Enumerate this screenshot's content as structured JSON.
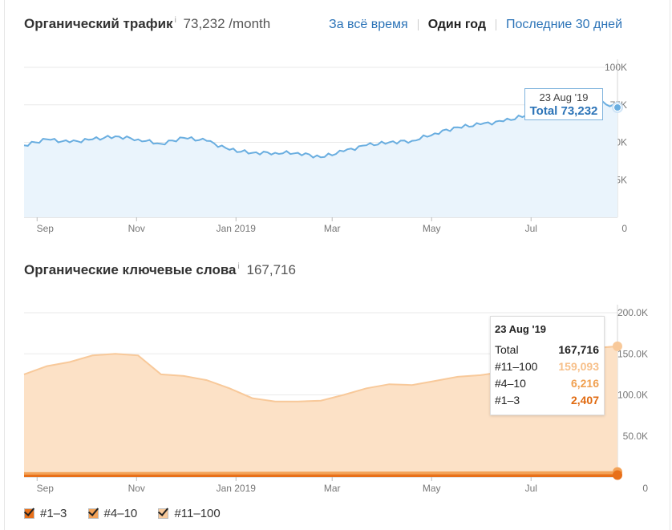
{
  "traffic": {
    "title": "Органический трафик",
    "info": "i",
    "value": "73,232",
    "unit": "/month",
    "period": {
      "all_time": "За всё время",
      "one_year": "Один год",
      "last_30": "Последние 30 дней"
    },
    "tooltip": {
      "date": "23 Aug '19",
      "total": "Total 73,232"
    }
  },
  "keywords": {
    "title": "Органические ключевые слова",
    "info": "i",
    "value": "167,716",
    "tooltip": {
      "date": "23 Aug '19",
      "rows": [
        {
          "label": "Total",
          "value": "167,716",
          "color": "#222222"
        },
        {
          "label": "#11–100",
          "value": "159,093",
          "color": "#f7c08a"
        },
        {
          "label": "#4–10",
          "value": "6,216",
          "color": "#f0a050"
        },
        {
          "label": "#1–3",
          "value": "2,407",
          "color": "#e06a10"
        }
      ]
    },
    "legend": [
      {
        "label": "#1–3",
        "color": "#e8701a"
      },
      {
        "label": "#4–10",
        "color": "#f3a257"
      },
      {
        "label": "#11–100",
        "color": "#f8c99a"
      }
    ]
  },
  "chart_data": [
    {
      "type": "area",
      "series": [
        {
          "name": "",
          "color": "#6aaee0",
          "x": [
            "2018-08-24",
            "2018-09-07",
            "2018-09-21",
            "2018-10-05",
            "2018-10-19",
            "2018-11-02",
            "2018-11-16",
            "2018-11-30",
            "2018-12-14",
            "2018-12-28",
            "2019-01-11",
            "2019-01-25",
            "2019-02-08",
            "2019-02-22",
            "2019-03-08",
            "2019-03-22",
            "2019-04-05",
            "2019-04-19",
            "2019-05-03",
            "2019-05-17",
            "2019-05-31",
            "2019-06-14",
            "2019-06-28",
            "2019-07-12",
            "2019-07-26",
            "2019-08-09",
            "2019-08-23"
          ],
          "values": [
            48000,
            52000,
            50000,
            52000,
            54000,
            52000,
            49000,
            53000,
            51000,
            45000,
            43000,
            43000,
            43000,
            40000,
            44000,
            48000,
            50000,
            51000,
            56000,
            60000,
            62000,
            64000,
            68000,
            72000,
            77000,
            78000,
            73232
          ]
        }
      ],
      "x_ticks": [
        "Sep",
        "Nov",
        "Jan 2019",
        "Mar",
        "May",
        "Jul"
      ],
      "y_ticks": [
        "0",
        "25K",
        "50K",
        "75K",
        "100K"
      ],
      "ylim": [
        0,
        100000
      ],
      "grid": true
    },
    {
      "type": "area",
      "series": [
        {
          "name": "#11–100",
          "color": "#f8c99a",
          "x": [
            "2018-08-24",
            "2018-09-07",
            "2018-09-21",
            "2018-10-05",
            "2018-10-19",
            "2018-11-02",
            "2018-11-16",
            "2018-11-30",
            "2018-12-14",
            "2018-12-28",
            "2019-01-11",
            "2019-01-25",
            "2019-02-08",
            "2019-02-22",
            "2019-03-08",
            "2019-03-22",
            "2019-04-05",
            "2019-04-19",
            "2019-05-03",
            "2019-05-17",
            "2019-05-31",
            "2019-06-14",
            "2019-06-28",
            "2019-07-12",
            "2019-07-26",
            "2019-08-09",
            "2019-08-23"
          ],
          "values": [
            125000,
            135000,
            140000,
            148000,
            150000,
            148000,
            125000,
            123000,
            118000,
            108000,
            96000,
            92000,
            92000,
            93000,
            100000,
            108000,
            113000,
            112000,
            117000,
            122000,
            124000,
            128000,
            138000,
            148000,
            155000,
            157000,
            159093
          ]
        },
        {
          "name": "#4–10",
          "color": "#f3a257",
          "x": [
            "2018-08-24",
            "2019-08-23"
          ],
          "values": [
            5000,
            6216
          ]
        },
        {
          "name": "#1–3",
          "color": "#e8701a",
          "x": [
            "2018-08-24",
            "2019-08-23"
          ],
          "values": [
            2000,
            2407
          ]
        }
      ],
      "x_ticks": [
        "Sep",
        "Nov",
        "Jan 2019",
        "Mar",
        "May",
        "Jul"
      ],
      "y_ticks": [
        "0",
        "50.0K",
        "100.0K",
        "150.0K",
        "200.0K"
      ],
      "ylim": [
        0,
        200000
      ],
      "grid": true
    }
  ]
}
